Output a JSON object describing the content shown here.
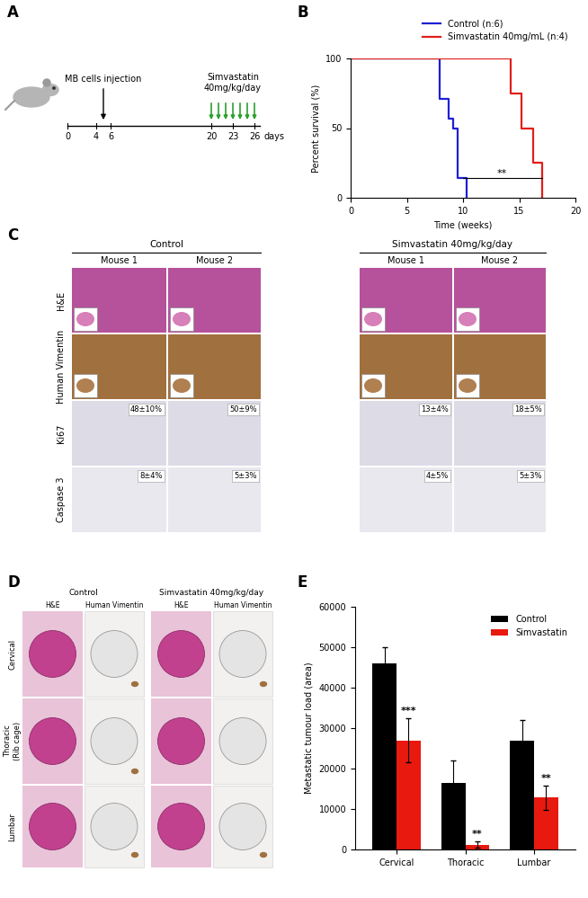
{
  "panel_labels": [
    "A",
    "B",
    "C",
    "D",
    "E"
  ],
  "panel_a": {
    "injection_label": "MB cells injection",
    "treatment_label": "Simvastatin\n40mg/kg/day",
    "timeline_ticks": [
      0,
      4,
      6,
      20,
      23,
      26
    ],
    "injection_day": 5,
    "treatment_days": [
      20,
      21,
      22,
      23,
      24,
      25,
      26
    ],
    "unit": "days"
  },
  "chart_data": [
    {
      "type": "line",
      "line_style": "steps",
      "x_label": "Time (weeks)",
      "y_label": "Percent survival (%)",
      "xlim": [
        0,
        20
      ],
      "xticks": [
        0,
        5,
        10,
        15,
        20
      ],
      "ylim": [
        0,
        100
      ],
      "yticks": [
        0,
        50,
        100
      ],
      "legend": "upper right",
      "grid": false,
      "series": [
        {
          "name": "Control (n:6)",
          "color": "#1f1fd6",
          "x": [
            0,
            7.9,
            8.7,
            9.1,
            9.5,
            10.3
          ],
          "values": [
            100,
            71,
            57,
            50,
            14,
            0
          ]
        },
        {
          "name": "Simvastatin 40mg/mL (n:4)",
          "color": "#e0201b",
          "x": [
            0,
            14.2,
            15.2,
            16.2,
            17
          ],
          "values": [
            100,
            75,
            50,
            25,
            0
          ]
        }
      ],
      "annotations": [
        {
          "text": "**",
          "x_start": 10,
          "x_end": 17,
          "y": 14
        }
      ]
    },
    {
      "type": "bar",
      "y_label": "Metastatic tumour load (area)",
      "categories": [
        "Cervical",
        "Thoracic",
        "Lumbar"
      ],
      "ylim": [
        0,
        60000
      ],
      "yticks": [
        0,
        10000,
        20000,
        30000,
        40000,
        50000,
        60000
      ],
      "legend": "upper right",
      "grid": false,
      "series": [
        {
          "name": "Control",
          "color": "#000000",
          "values": [
            46000,
            16500,
            27000
          ],
          "errors": [
            4000,
            5500,
            5000
          ]
        },
        {
          "name": "Simvastatin",
          "color": "#e8190f",
          "values": [
            27000,
            1200,
            12800
          ],
          "errors": [
            5500,
            800,
            3000
          ]
        }
      ],
      "annotations": [
        {
          "series": "Simvastatin",
          "category": "Cervical",
          "text": "***"
        },
        {
          "series": "Simvastatin",
          "category": "Thoracic",
          "text": "**"
        },
        {
          "series": "Simvastatin",
          "category": "Lumbar",
          "text": "**"
        }
      ]
    }
  ],
  "panel_c": {
    "groups": [
      {
        "title": "Control",
        "mice": [
          "Mouse 1",
          "Mouse 2"
        ]
      },
      {
        "title": "Simvastatin 40mg/kg/day",
        "mice": [
          "Mouse 1",
          "Mouse 2"
        ]
      }
    ],
    "rows": [
      "H&E",
      "Human Vimentin",
      "Ki67",
      "Caspase 3"
    ],
    "values": {
      "Ki67": [
        "48±10%",
        "50±9%",
        "13±4%",
        "18±5%"
      ],
      "Caspase 3": [
        "8±4%",
        "5±3%",
        "4±5%",
        "5±3%"
      ]
    }
  },
  "panel_d": {
    "groups": [
      {
        "title": "Control",
        "stains": [
          "H&E",
          "Human Vimentin"
        ]
      },
      {
        "title": "Simvastatin 40mg/kg/day",
        "stains": [
          "H&E",
          "Human Vimentin"
        ]
      }
    ],
    "rows": [
      "Cervical",
      "Thoracic\n(Rib cage)",
      "Lumbar"
    ]
  }
}
